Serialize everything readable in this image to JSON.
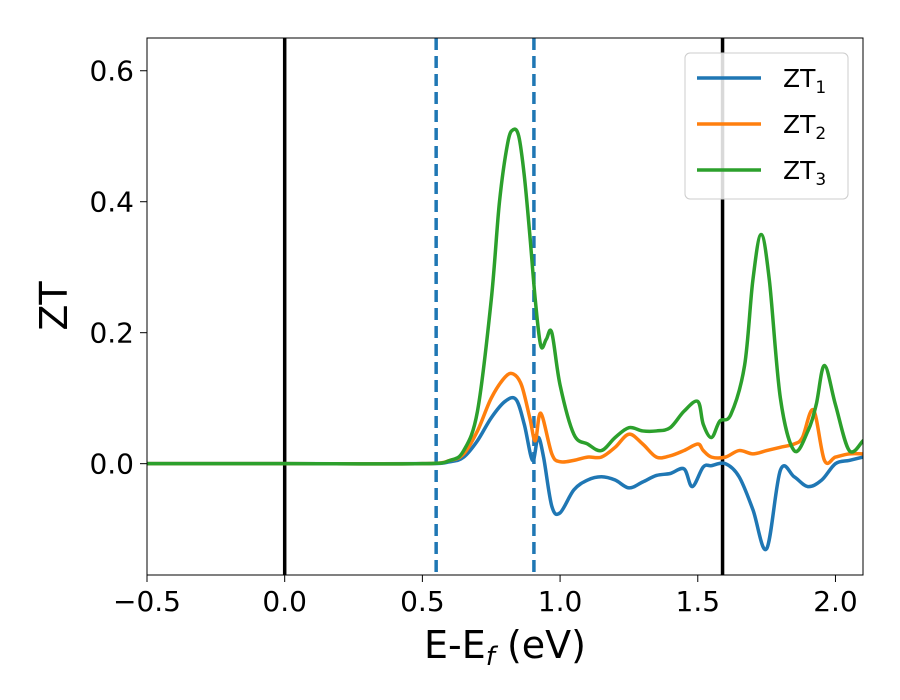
{
  "chart_data": {
    "type": "line",
    "title": "",
    "xlabel": "E-E",
    "xlabel_sub": "f",
    "xlabel_unit": " (eV)",
    "ylabel": "ZT",
    "xlim": [
      -0.5,
      2.1
    ],
    "ylim": [
      -0.17,
      0.65
    ],
    "xticks": [
      -0.5,
      0.0,
      0.5,
      1.0,
      1.5,
      2.0
    ],
    "xtick_labels": [
      "−0.5",
      "0.0",
      "0.5",
      "1.0",
      "1.5",
      "2.0"
    ],
    "yticks": [
      0.0,
      0.2,
      0.4,
      0.6
    ],
    "ytick_labels": [
      "0.0",
      "0.2",
      "0.4",
      "0.6"
    ],
    "grid": false,
    "legend_position": "top-right",
    "vlines": [
      {
        "x": 0.0,
        "style": "solid",
        "color": "#000000"
      },
      {
        "x": 1.59,
        "style": "solid",
        "color": "#000000"
      },
      {
        "x": 0.55,
        "style": "dashed",
        "color": "#1f77b4"
      },
      {
        "x": 0.905,
        "style": "dashed",
        "color": "#1f77b4"
      }
    ],
    "series": [
      {
        "name": "ZT",
        "name_sub": "1",
        "color": "#1f77b4",
        "x": [
          -0.5,
          0.0,
          0.5,
          0.6,
          0.65,
          0.7,
          0.75,
          0.8,
          0.84,
          0.87,
          0.9,
          0.92,
          0.94,
          0.97,
          1.0,
          1.05,
          1.1,
          1.15,
          1.2,
          1.25,
          1.3,
          1.35,
          1.4,
          1.45,
          1.48,
          1.52,
          1.55,
          1.6,
          1.65,
          1.7,
          1.75,
          1.8,
          1.85,
          1.9,
          1.95,
          2.0,
          2.05,
          2.1
        ],
        "y": [
          0.0,
          0.0,
          0.0,
          0.003,
          0.01,
          0.035,
          0.07,
          0.095,
          0.098,
          0.06,
          0.005,
          0.04,
          0.01,
          -0.065,
          -0.075,
          -0.04,
          -0.025,
          -0.02,
          -0.025,
          -0.037,
          -0.028,
          -0.018,
          -0.015,
          -0.008,
          -0.035,
          -0.005,
          -0.003,
          0.0,
          -0.02,
          -0.07,
          -0.13,
          -0.01,
          -0.02,
          -0.035,
          -0.025,
          0.0,
          0.005,
          0.01
        ]
      },
      {
        "name": "ZT",
        "name_sub": "2",
        "color": "#ff7f0e",
        "x": [
          -0.5,
          0.0,
          0.5,
          0.6,
          0.65,
          0.7,
          0.75,
          0.8,
          0.83,
          0.86,
          0.89,
          0.91,
          0.93,
          0.97,
          1.0,
          1.05,
          1.1,
          1.15,
          1.2,
          1.25,
          1.3,
          1.35,
          1.4,
          1.45,
          1.5,
          1.52,
          1.55,
          1.6,
          1.65,
          1.7,
          1.75,
          1.8,
          1.85,
          1.88,
          1.92,
          1.96,
          2.0,
          2.05,
          2.1
        ],
        "y": [
          0.0,
          0.0,
          0.0,
          0.005,
          0.015,
          0.05,
          0.1,
          0.132,
          0.137,
          0.12,
          0.07,
          0.035,
          0.077,
          0.015,
          0.003,
          0.005,
          0.01,
          0.01,
          0.025,
          0.045,
          0.03,
          0.01,
          0.012,
          0.02,
          0.03,
          0.02,
          0.01,
          0.01,
          0.02,
          0.015,
          0.02,
          0.025,
          0.03,
          0.04,
          0.082,
          0.005,
          0.01,
          0.015,
          0.015
        ]
      },
      {
        "name": "ZT",
        "name_sub": "3",
        "color": "#2ca02c",
        "x": [
          -0.5,
          0.0,
          0.5,
          0.6,
          0.65,
          0.7,
          0.75,
          0.78,
          0.81,
          0.83,
          0.85,
          0.87,
          0.89,
          0.91,
          0.93,
          0.95,
          0.97,
          1.0,
          1.05,
          1.1,
          1.15,
          1.2,
          1.25,
          1.3,
          1.35,
          1.4,
          1.45,
          1.5,
          1.52,
          1.55,
          1.58,
          1.62,
          1.67,
          1.7,
          1.73,
          1.76,
          1.8,
          1.85,
          1.9,
          1.93,
          1.96,
          2.0,
          2.05,
          2.1
        ],
        "y": [
          0.0,
          0.0,
          0.0,
          0.005,
          0.02,
          0.08,
          0.25,
          0.4,
          0.49,
          0.51,
          0.5,
          0.44,
          0.35,
          0.25,
          0.18,
          0.19,
          0.2,
          0.12,
          0.045,
          0.03,
          0.02,
          0.04,
          0.055,
          0.05,
          0.05,
          0.055,
          0.08,
          0.095,
          0.06,
          0.04,
          0.065,
          0.075,
          0.15,
          0.28,
          0.35,
          0.28,
          0.1,
          0.02,
          0.05,
          0.09,
          0.15,
          0.09,
          0.02,
          0.035
        ]
      }
    ]
  }
}
